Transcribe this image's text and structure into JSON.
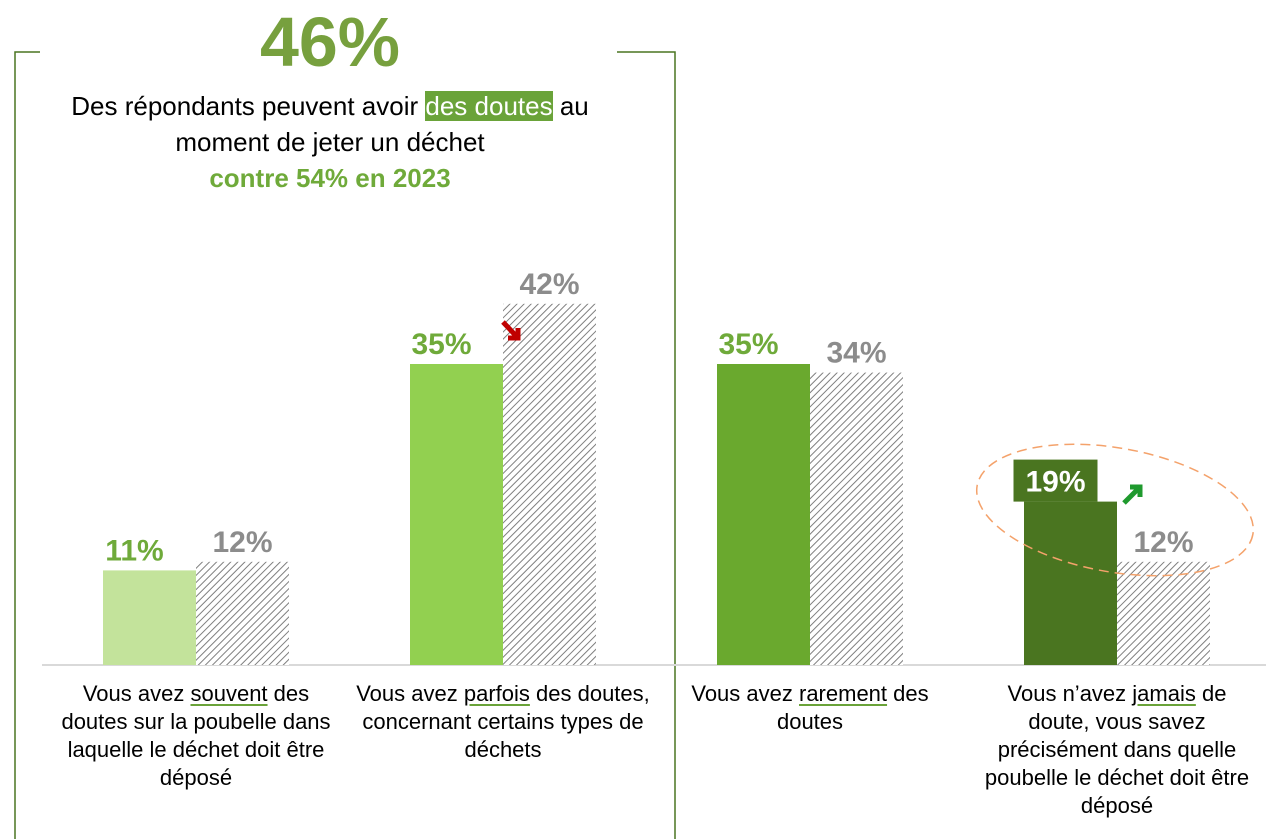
{
  "chart_data": {
    "type": "bar",
    "headline": "46%",
    "subtitle_parts": [
      "Des répondants peuvent avoir ",
      "des doutes",
      " au moment de jeter un déchet"
    ],
    "comparison": "contre 54% en 2023",
    "categories": [
      [
        "Vous avez ",
        "souvent",
        " des doutes sur la poubelle dans laquelle le déchet doit être déposé"
      ],
      [
        "Vous avez ",
        "parfois",
        " des doutes, concernant certains types de déchets"
      ],
      [
        "Vous avez ",
        "rarement",
        " des doutes"
      ],
      [
        "Vous n’avez ",
        "jamais",
        " de doute, vous savez précisément dans quelle poubelle le déchet doit être déposé"
      ]
    ],
    "series": [
      {
        "colors": [
          "#c3e39b",
          "#92d050",
          "#6aa92e",
          "#4a7520"
        ],
        "label_color": "#6faa3a",
        "values": [
          11,
          35,
          35,
          19
        ],
        "value_labels": [
          "11%",
          "35%",
          "35%",
          "19%"
        ]
      },
      {
        "color": "#8c8c8c",
        "hatched": true,
        "label_color": "#8c8c8c",
        "values": [
          12,
          42,
          34,
          12
        ],
        "value_labels": [
          "12%",
          "42%",
          "34%",
          "12%"
        ]
      }
    ],
    "ylim": [
      0,
      50
    ]
  }
}
